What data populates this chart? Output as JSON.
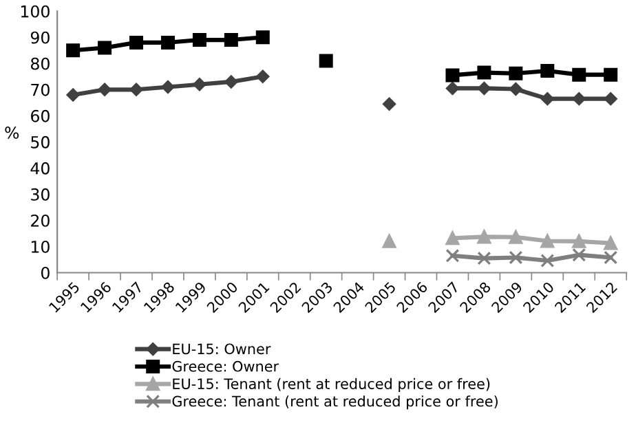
{
  "chart_data": {
    "type": "line",
    "ylabel": "%",
    "categories": [
      "1995",
      "1996",
      "1997",
      "1998",
      "1999",
      "2000",
      "2001",
      "2002",
      "2003",
      "2004",
      "2005",
      "2006",
      "2007",
      "2008",
      "2009",
      "2010",
      "2011",
      "2012"
    ],
    "series": [
      {
        "name": "EU-15: Owner",
        "color": "#404040",
        "marker": "diamond",
        "values": [
          68,
          70,
          70,
          71,
          72,
          73,
          75,
          null,
          null,
          null,
          64.5,
          null,
          70.5,
          70.5,
          70.2,
          66.5,
          66.5,
          66.5
        ]
      },
      {
        "name": "Greece: Owner",
        "color": "#000000",
        "marker": "square",
        "values": [
          85,
          86,
          88,
          88,
          89,
          89,
          90,
          null,
          81,
          null,
          null,
          null,
          75.5,
          76.5,
          76.2,
          77.2,
          75.7,
          75.7
        ]
      },
      {
        "name": "EU-15: Tenant (rent at reduced price or free)",
        "color": "#a6a6a6",
        "marker": "triangle",
        "values": [
          null,
          null,
          null,
          null,
          null,
          null,
          null,
          null,
          null,
          null,
          12,
          null,
          13.2,
          13.7,
          13.6,
          12.1,
          12,
          11.3
        ]
      },
      {
        "name": "Greece: Tenant (rent at reduced price or free)",
        "color": "#7f7f7f",
        "marker": "cross",
        "values": [
          null,
          null,
          null,
          null,
          null,
          null,
          null,
          null,
          null,
          null,
          null,
          null,
          6.5,
          5.5,
          5.8,
          4.6,
          6.8,
          5.8
        ]
      }
    ],
    "ylim": [
      0,
      100
    ],
    "yticks": [
      0,
      10,
      20,
      30,
      40,
      50,
      60,
      70,
      80,
      90,
      100
    ],
    "grid": false,
    "legend": "bottom"
  }
}
